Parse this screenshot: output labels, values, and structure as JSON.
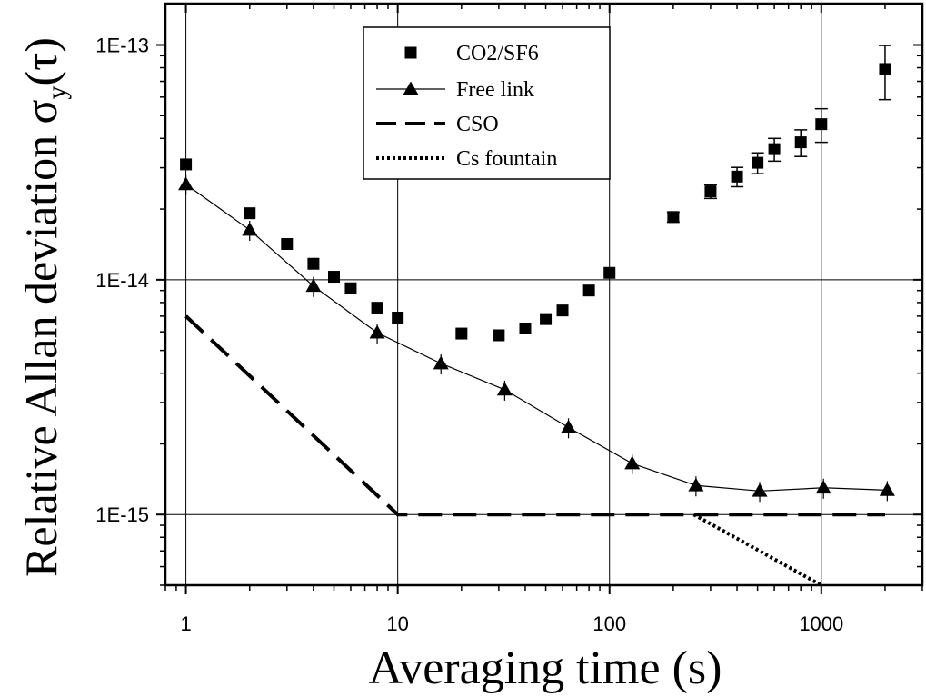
{
  "chart_data": {
    "type": "scatter",
    "title": "",
    "xlabel": "Averaging time (s)",
    "ylabel": {
      "main": "Relative Allan deviation ",
      "sigma": "σ",
      "subscript": "y",
      "open": "(",
      "tau": "τ",
      "close": ")"
    },
    "xscale": "log",
    "yscale": "log",
    "xlim": [
      0.8,
      3000
    ],
    "ylim": [
      5e-16,
      1.5e-13
    ],
    "grid": true,
    "legend_position": "top-center",
    "x_ticks": [
      {
        "value": 1,
        "label": "1"
      },
      {
        "value": 10,
        "label": "10"
      },
      {
        "value": 100,
        "label": "100"
      },
      {
        "value": 1000,
        "label": "1000"
      }
    ],
    "y_ticks": [
      {
        "value": 1e-15,
        "label": "1E-15"
      },
      {
        "value": 1e-14,
        "label": "1E-14"
      },
      {
        "value": 1e-13,
        "label": "1E-13"
      }
    ],
    "series": [
      {
        "name": "CO2/SF6",
        "marker": "square",
        "line": "none",
        "color": "#000000",
        "points": [
          {
            "x": 1,
            "y": 3.1e-14
          },
          {
            "x": 2,
            "y": 1.92e-14
          },
          {
            "x": 3,
            "y": 1.42e-14
          },
          {
            "x": 4,
            "y": 1.17e-14
          },
          {
            "x": 5,
            "y": 1.03e-14
          },
          {
            "x": 6,
            "y": 9.2e-15
          },
          {
            "x": 8,
            "y": 7.6e-15
          },
          {
            "x": 10,
            "y": 6.9e-15
          },
          {
            "x": 20,
            "y": 5.9e-15
          },
          {
            "x": 30,
            "y": 5.8e-15
          },
          {
            "x": 40,
            "y": 6.2e-15
          },
          {
            "x": 50,
            "y": 6.8e-15
          },
          {
            "x": 60,
            "y": 7.4e-15
          },
          {
            "x": 80,
            "y": 9e-15
          },
          {
            "x": 100,
            "y": 1.07e-14
          },
          {
            "x": 200,
            "y": 1.85e-14,
            "err": 9e-16
          },
          {
            "x": 300,
            "y": 2.38e-14,
            "err": 1.6e-15
          },
          {
            "x": 400,
            "y": 2.75e-14,
            "err": 2.6e-15
          },
          {
            "x": 500,
            "y": 3.15e-14,
            "err": 3.2e-15
          },
          {
            "x": 600,
            "y": 3.6e-14,
            "err": 4e-15
          },
          {
            "x": 800,
            "y": 3.85e-14,
            "err": 5e-15
          },
          {
            "x": 1000,
            "y": 4.6e-14,
            "err": 7.5e-15
          },
          {
            "x": 2000,
            "y": 7.9e-14,
            "err": 2.05e-14
          }
        ]
      },
      {
        "name": "Free link",
        "marker": "triangle",
        "line": "solid-thin",
        "color": "#000000",
        "points": [
          {
            "x": 1,
            "y": 2.55e-14
          },
          {
            "x": 2,
            "y": 1.63e-14
          },
          {
            "x": 4,
            "y": 9.4e-15
          },
          {
            "x": 8,
            "y": 5.95e-15
          },
          {
            "x": 16,
            "y": 4.4e-15
          },
          {
            "x": 32,
            "y": 3.4e-15
          },
          {
            "x": 64,
            "y": 2.35e-15
          },
          {
            "x": 128,
            "y": 1.65e-15
          },
          {
            "x": 256,
            "y": 1.33e-15
          },
          {
            "x": 512,
            "y": 1.26e-15
          },
          {
            "x": 1024,
            "y": 1.3e-15
          },
          {
            "x": 2048,
            "y": 1.27e-15
          }
        ]
      },
      {
        "name": "CSO",
        "marker": "none",
        "line": "dashed",
        "color": "#000000",
        "points": [
          {
            "x": 1,
            "y": 7e-15
          },
          {
            "x": 10,
            "y": 1e-15
          },
          {
            "x": 2000,
            "y": 1e-15
          }
        ]
      },
      {
        "name": "Cs fountain",
        "marker": "none",
        "line": "dotted",
        "color": "#000000",
        "points": [
          {
            "x": 250,
            "y": 1e-15
          },
          {
            "x": 1000,
            "y": 5e-16
          }
        ]
      }
    ]
  }
}
